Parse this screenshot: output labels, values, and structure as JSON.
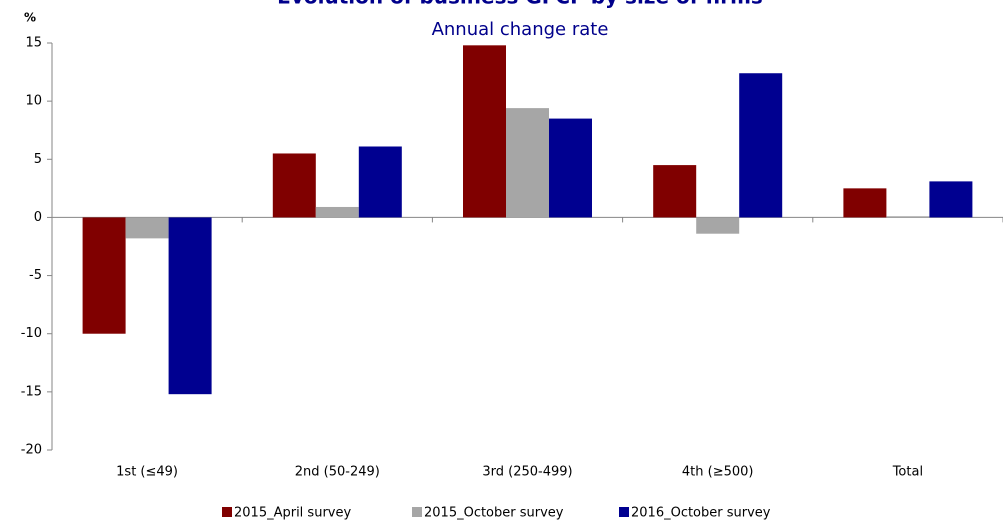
{
  "chart_data": {
    "type": "bar",
    "title": "Evolution of business GFCF by size of firms",
    "subtitle": "Annual change rate",
    "y_label": "%",
    "categories": [
      "1st (≤49)",
      "2nd (50-249)",
      "3rd (250-499)",
      "4th (≥500)",
      "Total"
    ],
    "series": [
      {
        "name": "2015_April survey",
        "color": "#800000",
        "values": [
          -10,
          5.5,
          14.8,
          4.5,
          2.5
        ]
      },
      {
        "name": "2015_October survey",
        "color": "#a6a6a6",
        "values": [
          -1.8,
          0.9,
          9.4,
          -1.4,
          0.1
        ]
      },
      {
        "name": "2016_October survey",
        "color": "#000090",
        "values": [
          -15.2,
          6.1,
          8.5,
          12.4,
          3.1
        ]
      }
    ],
    "ylim": [
      -20,
      15
    ],
    "yticks": [
      -20,
      -15,
      -10,
      -5,
      0,
      5,
      10,
      15
    ],
    "grid": false,
    "legend": "bottom"
  }
}
